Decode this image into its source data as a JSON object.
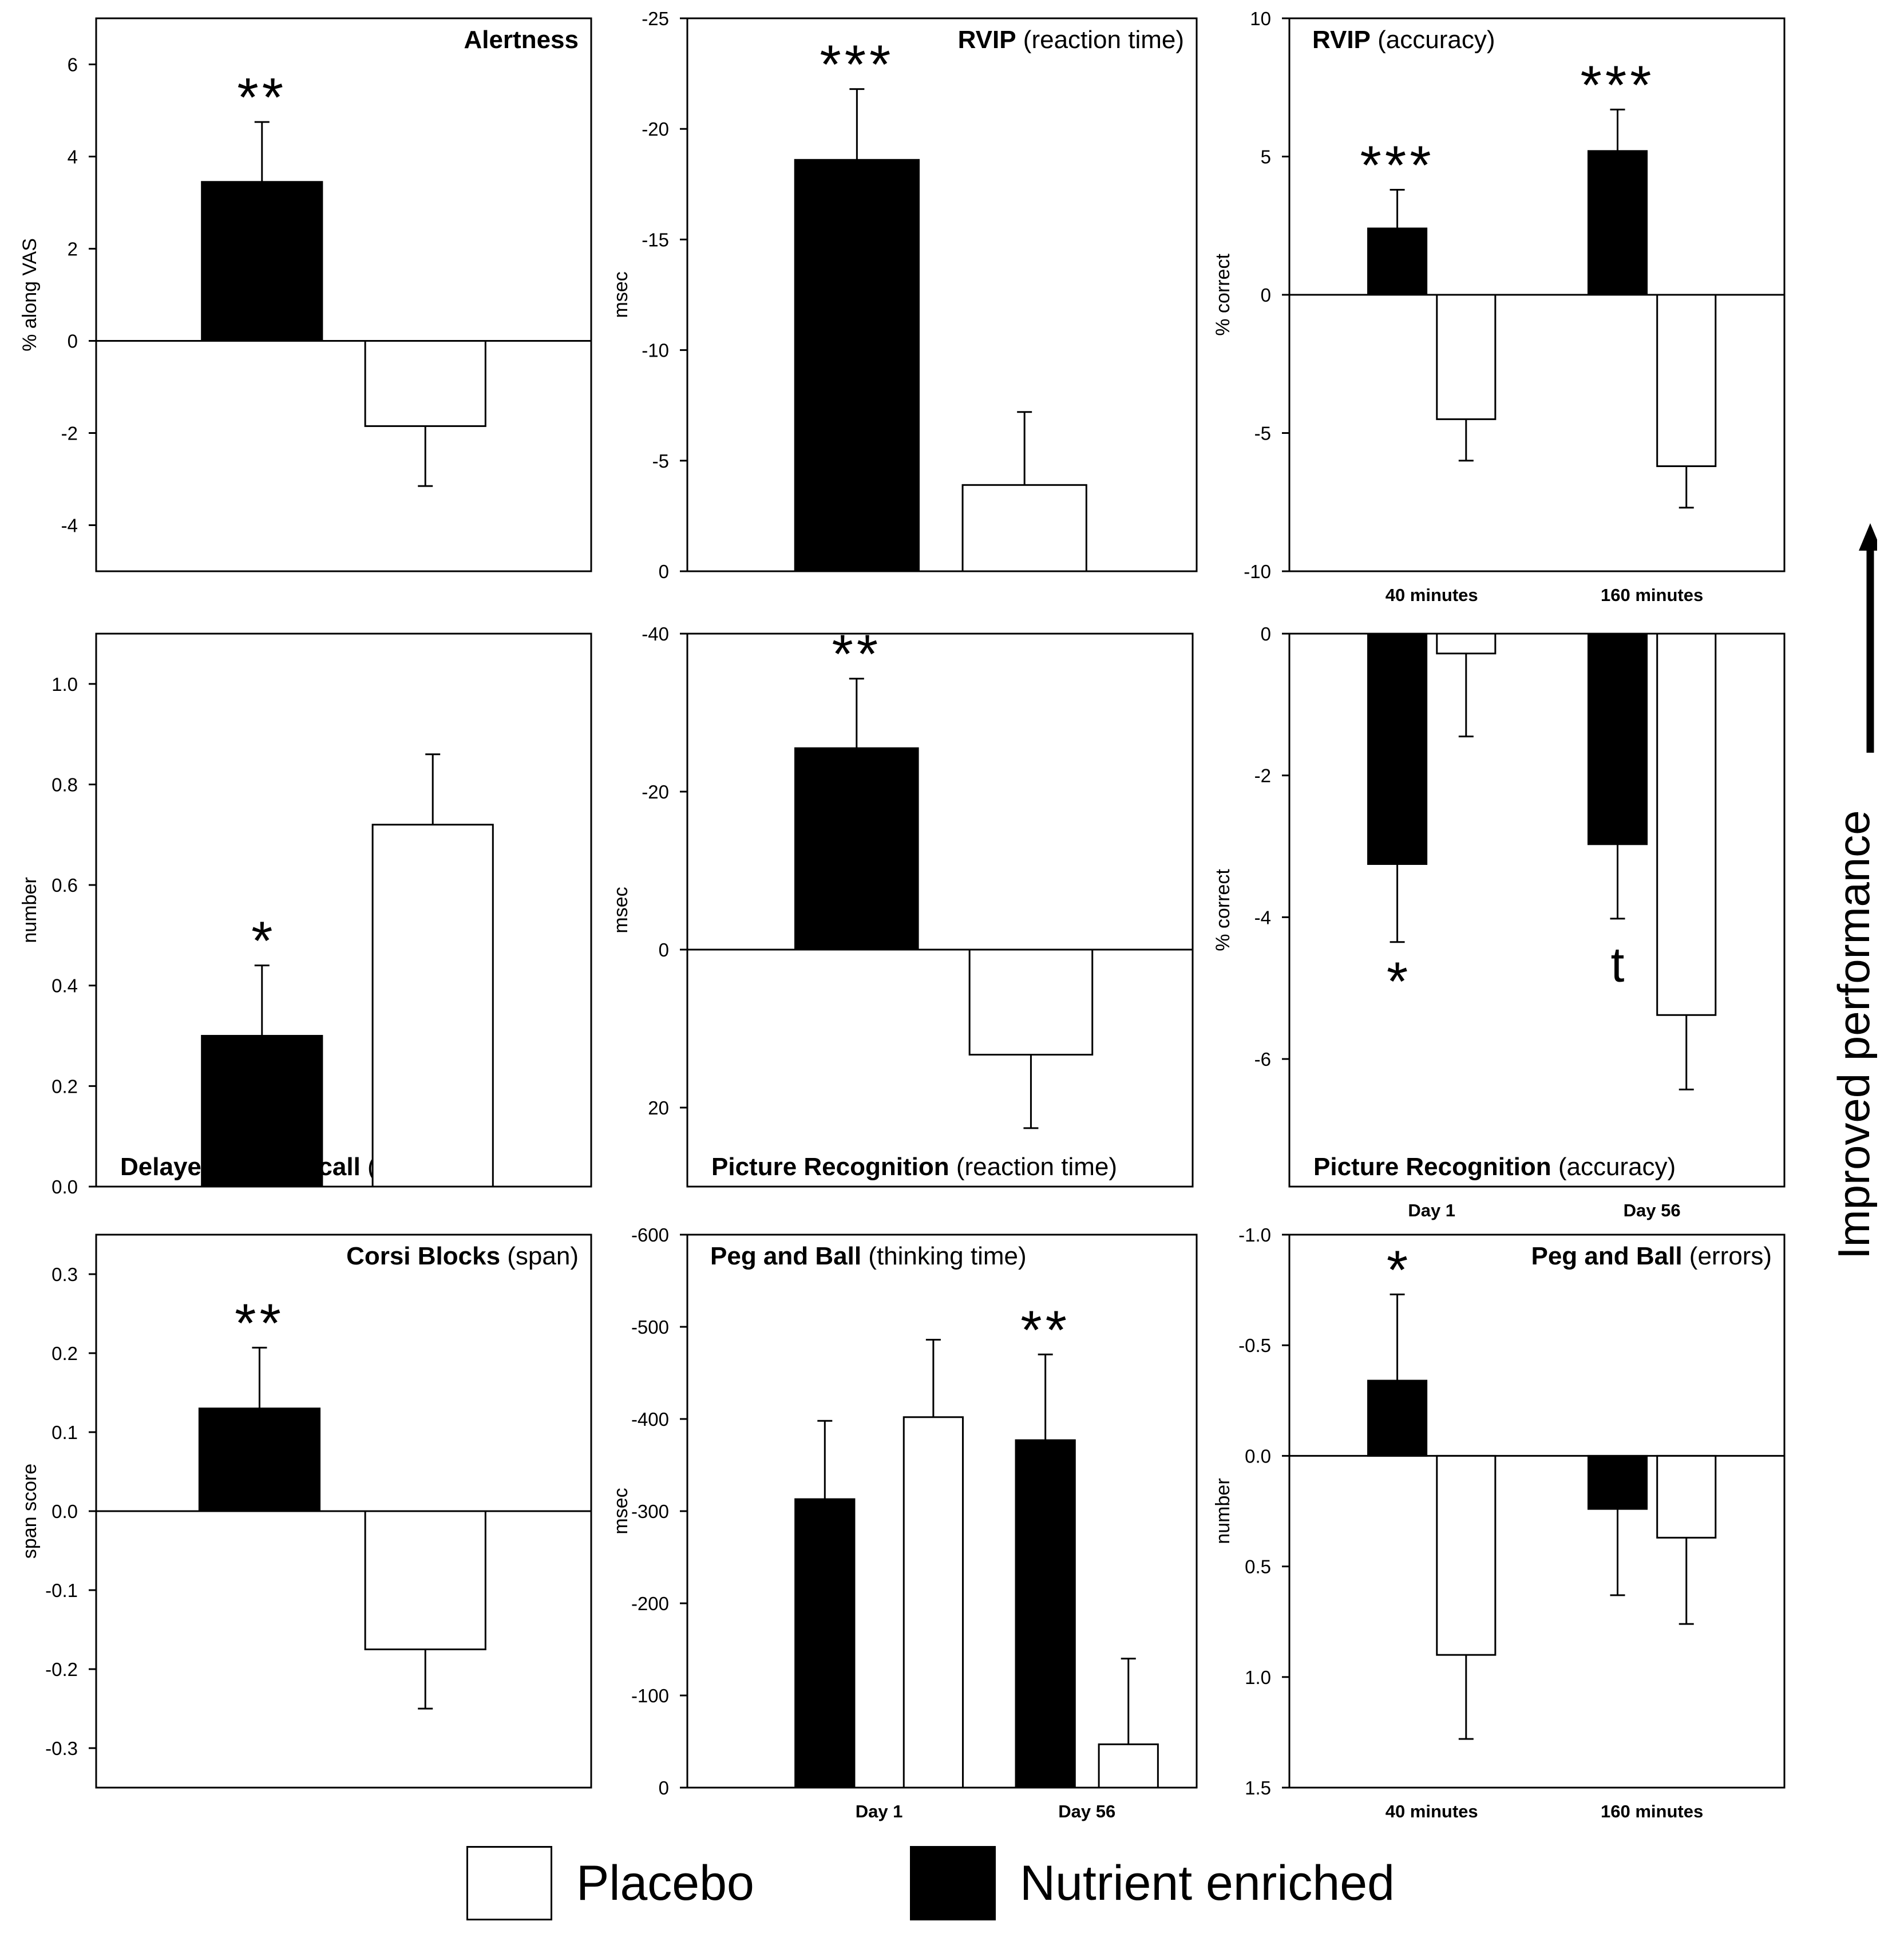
{
  "chart_data": [
    {
      "id": "alertness",
      "type": "bar",
      "title_bold": "Alertness",
      "title_rest": "",
      "title_pos": "top-right",
      "ylabel": "% along VAS",
      "yticks": [
        -4,
        -2,
        0,
        2,
        4,
        6
      ],
      "ylim": [
        -5,
        7
      ],
      "reversed": false,
      "categories": [
        ""
      ],
      "series": [
        {
          "name": "Nutrient enriched",
          "values": [
            3.45
          ],
          "errors": [
            1.3
          ],
          "sig": [
            "**"
          ]
        },
        {
          "name": "Placebo",
          "values": [
            -1.85
          ],
          "errors": [
            1.3
          ],
          "sig": [
            ""
          ]
        }
      ]
    },
    {
      "id": "rvip-rt",
      "type": "bar",
      "title_bold": "RVIP",
      "title_rest": " (reaction time)",
      "title_pos": "top-right",
      "ylabel": "msec",
      "yticks": [
        -25,
        -20,
        -15,
        -10,
        -5,
        0
      ],
      "ylim": [
        0,
        -25
      ],
      "reversed": true,
      "categories": [
        ""
      ],
      "series": [
        {
          "name": "Nutrient enriched",
          "values": [
            -18.6
          ],
          "errors": [
            3.2
          ],
          "sig": [
            "***"
          ]
        },
        {
          "name": "Placebo",
          "values": [
            -3.9
          ],
          "errors": [
            3.3
          ],
          "sig": [
            ""
          ]
        }
      ]
    },
    {
      "id": "rvip-acc",
      "type": "bar",
      "title_bold": "RVIP",
      "title_rest": " (accuracy)",
      "title_pos": "top-left",
      "ylabel": "% correct",
      "yticks": [
        -10,
        -5,
        0,
        5,
        10
      ],
      "ylim": [
        -10,
        10
      ],
      "reversed": false,
      "categories": [
        "40 minutes",
        "160 minutes"
      ],
      "series": [
        {
          "name": "Nutrient enriched",
          "values": [
            2.4,
            5.2
          ],
          "errors": [
            1.4,
            1.5
          ],
          "sig": [
            "***",
            "***"
          ]
        },
        {
          "name": "Placebo",
          "values": [
            -4.5,
            -6.2
          ],
          "errors": [
            1.5,
            1.5
          ],
          "sig": [
            "",
            ""
          ]
        }
      ]
    },
    {
      "id": "word-recall",
      "type": "bar",
      "title_bold": "Delayed Word recall",
      "title_rest": " (errors)",
      "title_pos": "bottom-left",
      "ylabel": "number",
      "yticks": [
        "0.0",
        "0.2",
        "0.4",
        "0.6",
        "0.8",
        "1.0"
      ],
      "ylim": [
        0,
        1.1
      ],
      "reversed": true,
      "categories": [
        ""
      ],
      "series": [
        {
          "name": "Nutrient enriched",
          "values": [
            0.3
          ],
          "errors": [
            0.14
          ],
          "sig": [
            "*"
          ]
        },
        {
          "name": "Placebo",
          "values": [
            0.72
          ],
          "errors": [
            0.14
          ],
          "sig": [
            ""
          ]
        }
      ]
    },
    {
      "id": "picture-rt",
      "type": "bar",
      "title_bold": "Picture Recognition",
      "title_rest": " (reaction time)",
      "title_pos": "bottom-left",
      "ylabel": "msec",
      "yticks": [
        -40,
        -20,
        0,
        20
      ],
      "ylim": [
        30,
        -40
      ],
      "reversed": true,
      "categories": [
        ""
      ],
      "series": [
        {
          "name": "Nutrient enriched",
          "values": [
            -25.5
          ],
          "errors": [
            8.8
          ],
          "sig": [
            "**"
          ]
        },
        {
          "name": "Placebo",
          "values": [
            13.3
          ],
          "errors": [
            9.3
          ],
          "sig": [
            ""
          ]
        }
      ]
    },
    {
      "id": "picture-acc",
      "type": "bar",
      "title_bold": "Picture Recognition",
      "title_rest": " (accuracy)",
      "title_pos": "bottom-left",
      "ylabel": "% correct",
      "yticks": [
        -6,
        -4,
        -2,
        0
      ],
      "ylim": [
        -7.8,
        0
      ],
      "reversed": false,
      "categories": [
        "Day 1",
        "Day 56"
      ],
      "series": [
        {
          "name": "Nutrient enriched",
          "values": [
            -3.25,
            -2.97
          ],
          "errors": [
            1.1,
            1.05
          ],
          "sig": [
            "*",
            "t"
          ]
        },
        {
          "name": "Placebo",
          "values": [
            -0.28,
            -5.38
          ],
          "errors": [
            1.17,
            1.05
          ],
          "sig": [
            "",
            ""
          ]
        }
      ]
    },
    {
      "id": "corsi",
      "type": "bar",
      "title_bold": "Corsi Blocks",
      "title_rest": " (span)",
      "title_pos": "top-right",
      "ylabel": "span score",
      "yticks": [
        "-0.3",
        "-0.2",
        "-0.1",
        "0.0",
        "0.1",
        "0.2",
        "0.3"
      ],
      "ylim": [
        -0.35,
        0.35
      ],
      "reversed": false,
      "categories": [
        ""
      ],
      "series": [
        {
          "name": "Nutrient enriched",
          "values": [
            0.13
          ],
          "errors": [
            0.077
          ],
          "sig": [
            "**"
          ]
        },
        {
          "name": "Placebo",
          "values": [
            -0.175
          ],
          "errors": [
            0.075
          ],
          "sig": [
            ""
          ]
        }
      ]
    },
    {
      "id": "peg-time",
      "type": "bar",
      "title_bold": "Peg and Ball",
      "title_rest": " (thinking time)",
      "title_pos": "top-left",
      "ylabel": "msec",
      "yticks": [
        -600,
        -500,
        -400,
        -300,
        -200,
        -100,
        0
      ],
      "ylim": [
        0,
        -600
      ],
      "reversed": true,
      "categories": [
        "Day 1",
        "Day 56"
      ],
      "series": [
        {
          "name": "Nutrient enriched",
          "values": [
            -313,
            -377
          ],
          "errors": [
            85,
            93
          ],
          "sig": [
            "",
            "**"
          ]
        },
        {
          "name": "Placebo",
          "values": [
            -402,
            -47
          ],
          "errors": [
            84,
            93
          ],
          "sig": [
            "",
            ""
          ]
        }
      ]
    },
    {
      "id": "peg-errors",
      "type": "bar",
      "title_bold": "Peg and Ball",
      "title_rest": " (errors)",
      "title_pos": "top-right",
      "ylabel": "number",
      "yticks": [
        "-1.0",
        "-0.5",
        "0.0",
        "0.5",
        "1.0",
        "1.5"
      ],
      "ylim": [
        1.5,
        -1.0
      ],
      "reversed": true,
      "categories": [
        "40 minutes",
        "160 minutes"
      ],
      "series": [
        {
          "name": "Nutrient enriched",
          "values": [
            -0.34,
            0.24
          ],
          "errors": [
            0.39,
            0.39
          ],
          "sig": [
            "*",
            ""
          ]
        },
        {
          "name": "Placebo",
          "values": [
            0.9,
            0.37
          ],
          "errors": [
            0.38,
            0.39
          ],
          "sig": [
            "",
            ""
          ]
        }
      ]
    }
  ],
  "legend": {
    "placebo": {
      "label": "Placebo",
      "color": "#ffffff"
    },
    "nutrient": {
      "label": "Nutrient enriched",
      "color": "#000000"
    }
  },
  "side_note": "Improved performance"
}
